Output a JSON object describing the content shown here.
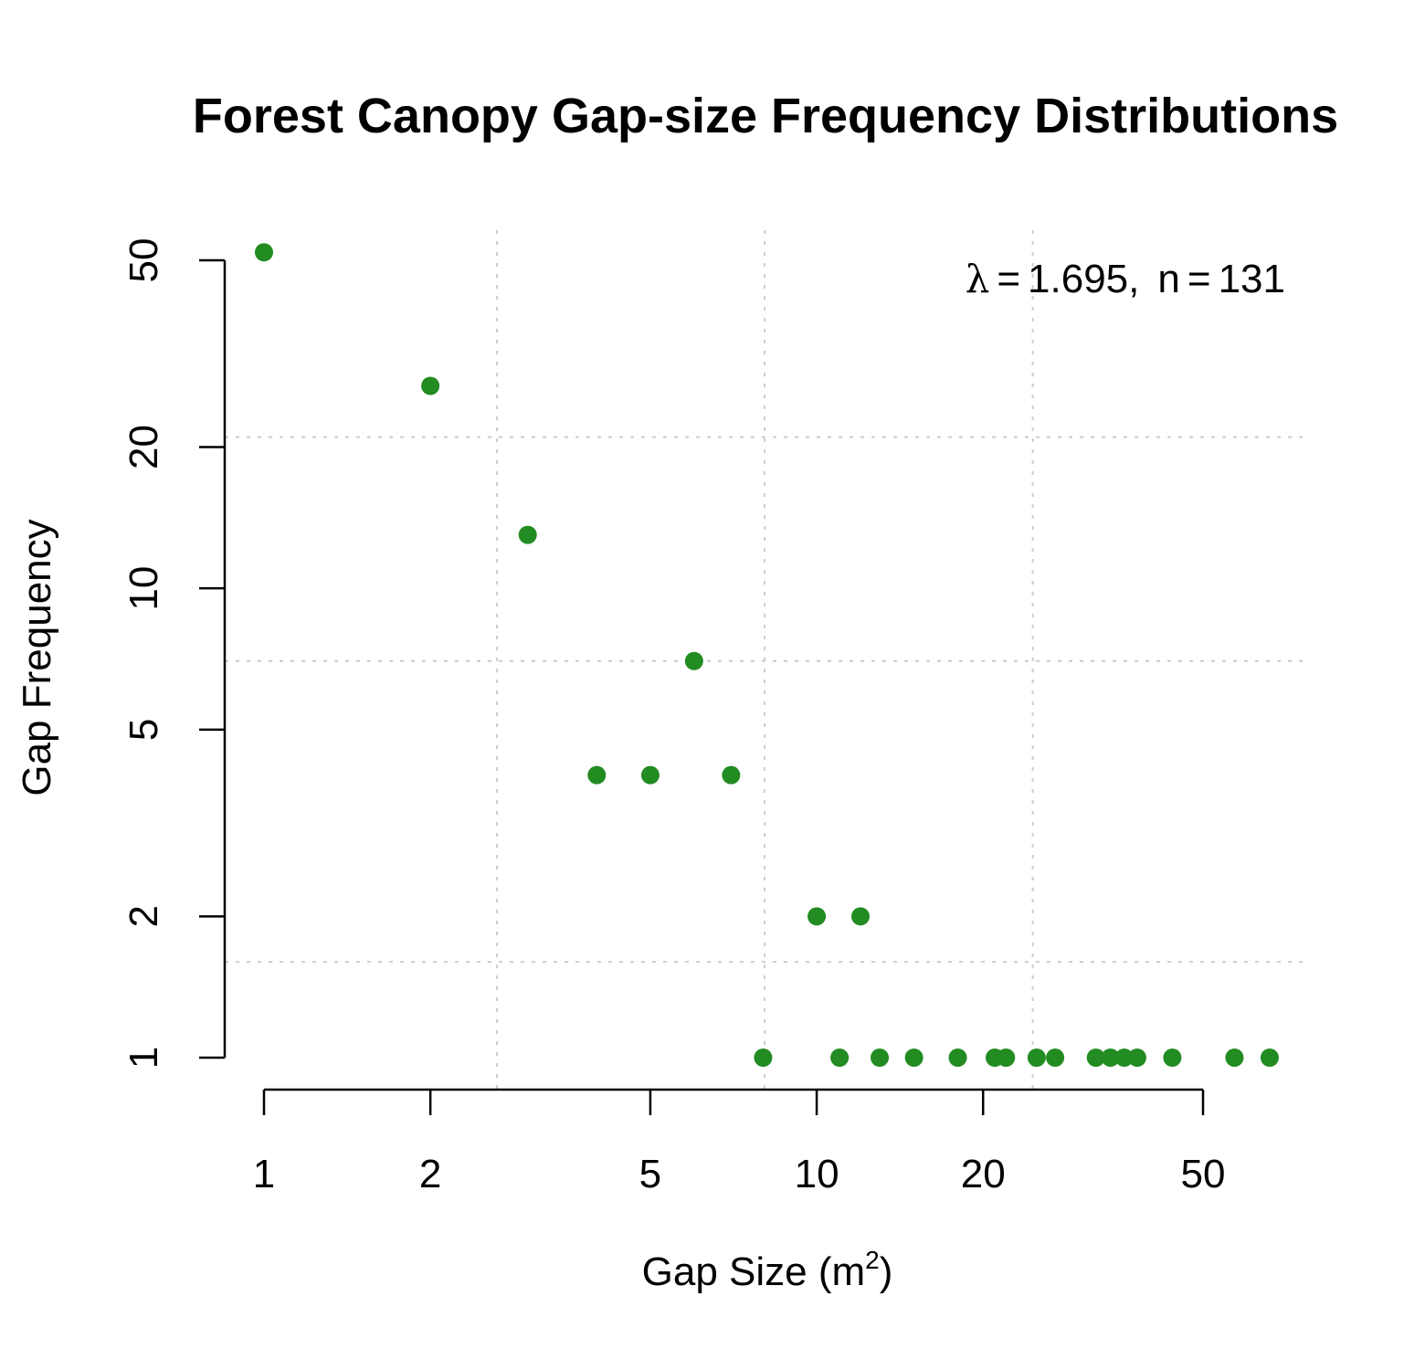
{
  "chart_data": {
    "type": "scatter",
    "title": "Forest Canopy Gap-size Frequency Distributions",
    "xlabel": {
      "prefix": "Gap Size (m",
      "superscript": "2",
      "suffix": ")"
    },
    "ylabel": "Gap Frequency",
    "x_scale": "log",
    "y_scale": "log",
    "xlim": [
      0.9,
      70
    ],
    "ylim": [
      1,
      55
    ],
    "x_ticks": [
      1,
      2,
      5,
      10,
      20,
      50
    ],
    "x_tick_labels": [
      "1",
      "2",
      "5",
      "10",
      "20",
      "50"
    ],
    "y_ticks": [
      1,
      2,
      5,
      10,
      20,
      50
    ],
    "y_tick_labels": [
      "1",
      "2",
      "5",
      "10",
      "20",
      "50"
    ],
    "grid": {
      "style": "dotted",
      "color": "#cccccc",
      "x": [
        2.64,
        8.05,
        24.6
      ],
      "y": [
        1.6,
        7.0,
        21.0
      ]
    },
    "point_color": "#228b22",
    "annotation": {
      "lambda_symbol": "λ",
      "equals": "=",
      "lambda_value": "1.695,",
      "n_symbol": "n",
      "n_value": "131",
      "position": "top-right"
    },
    "points": [
      {
        "x": 1,
        "y": 52
      },
      {
        "x": 2,
        "y": 27
      },
      {
        "x": 3,
        "y": 13
      },
      {
        "x": 4,
        "y": 4
      },
      {
        "x": 5,
        "y": 4
      },
      {
        "x": 6,
        "y": 7
      },
      {
        "x": 7,
        "y": 4
      },
      {
        "x": 8,
        "y": 1
      },
      {
        "x": 10,
        "y": 2
      },
      {
        "x": 12,
        "y": 2
      },
      {
        "x": 11,
        "y": 1
      },
      {
        "x": 13,
        "y": 1
      },
      {
        "x": 15,
        "y": 1
      },
      {
        "x": 18,
        "y": 1
      },
      {
        "x": 21,
        "y": 1
      },
      {
        "x": 22,
        "y": 1
      },
      {
        "x": 25,
        "y": 1
      },
      {
        "x": 27,
        "y": 1
      },
      {
        "x": 32,
        "y": 1
      },
      {
        "x": 34,
        "y": 1
      },
      {
        "x": 36,
        "y": 1
      },
      {
        "x": 38,
        "y": 1
      },
      {
        "x": 44,
        "y": 1
      },
      {
        "x": 57,
        "y": 1
      },
      {
        "x": 66,
        "y": 1
      }
    ]
  }
}
